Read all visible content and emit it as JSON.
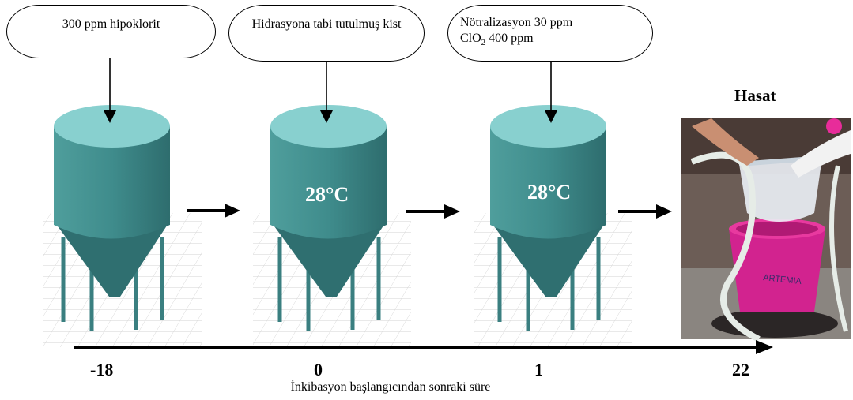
{
  "steps": [
    {
      "note": "300 ppm hipoklorit",
      "temperature": "",
      "time": "-18"
    },
    {
      "note": "Hidrasyona tabi tutulmuş kist",
      "temperature": "28°C",
      "time": "0"
    },
    {
      "note_line1": "Nötralizasyon 30 ppm",
      "note_line2_prefix": "ClO",
      "note_line2_sub": "2",
      "note_line2_suffix": " 400 ppm",
      "temperature": "28°C",
      "time": "1"
    },
    {
      "title": "Hasat",
      "time": "22"
    }
  ],
  "axis_label": "İnkibasyon başlangıcından sonraki süre",
  "colors": {
    "tank_top": "#88d0cf",
    "tank_body": "#3f8c8c",
    "tank_shade": "#2f6f70",
    "leg": "#3a7f80"
  },
  "icons": [
    "tank-icon",
    "harvest-photo-icon",
    "arrow-right-icon"
  ]
}
